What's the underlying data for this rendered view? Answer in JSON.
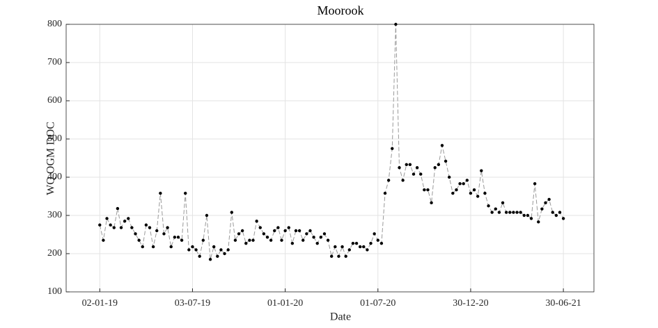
{
  "chart_data": {
    "type": "line",
    "title": "Moorook",
    "x_label": "Date",
    "y_label": "WQ OGM DOC",
    "x": [
      "2019-01-02",
      "2019-01-09",
      "2019-01-16",
      "2019-01-23",
      "2019-01-30",
      "2019-02-06",
      "2019-02-13",
      "2019-02-20",
      "2019-02-27",
      "2019-03-06",
      "2019-03-13",
      "2019-03-20",
      "2019-03-27",
      "2019-04-03",
      "2019-04-10",
      "2019-04-17",
      "2019-04-24",
      "2019-05-01",
      "2019-05-08",
      "2019-05-15",
      "2019-05-22",
      "2019-05-29",
      "2019-06-05",
      "2019-06-12",
      "2019-06-19",
      "2019-06-26",
      "2019-07-03",
      "2019-07-10",
      "2019-07-17",
      "2019-07-24",
      "2019-07-31",
      "2019-08-07",
      "2019-08-14",
      "2019-08-21",
      "2019-08-28",
      "2019-09-04",
      "2019-09-11",
      "2019-09-18",
      "2019-09-25",
      "2019-10-02",
      "2019-10-09",
      "2019-10-16",
      "2019-10-23",
      "2019-10-30",
      "2019-11-06",
      "2019-11-13",
      "2019-11-20",
      "2019-11-27",
      "2019-12-04",
      "2019-12-11",
      "2019-12-18",
      "2019-12-25",
      "2020-01-01",
      "2020-01-08",
      "2020-01-15",
      "2020-01-22",
      "2020-01-29",
      "2020-02-05",
      "2020-02-12",
      "2020-02-19",
      "2020-02-26",
      "2020-03-04",
      "2020-03-11",
      "2020-03-18",
      "2020-03-25",
      "2020-04-01",
      "2020-04-08",
      "2020-04-15",
      "2020-04-22",
      "2020-04-29",
      "2020-05-06",
      "2020-05-13",
      "2020-05-20",
      "2020-05-27",
      "2020-06-03",
      "2020-06-10",
      "2020-06-17",
      "2020-06-24",
      "2020-07-01",
      "2020-07-08",
      "2020-07-15",
      "2020-07-22",
      "2020-07-29",
      "2020-08-05",
      "2020-08-12",
      "2020-08-19",
      "2020-08-26",
      "2020-09-02",
      "2020-09-09",
      "2020-09-16",
      "2020-09-23",
      "2020-09-30",
      "2020-10-07",
      "2020-10-14",
      "2020-10-21",
      "2020-10-28",
      "2020-11-04",
      "2020-11-11",
      "2020-11-18",
      "2020-11-25",
      "2020-12-02",
      "2020-12-09",
      "2020-12-16",
      "2020-12-23",
      "2020-12-30",
      "2021-01-06",
      "2021-01-13",
      "2021-01-20",
      "2021-01-27",
      "2021-02-03",
      "2021-02-10",
      "2021-02-17",
      "2021-02-24",
      "2021-03-03",
      "2021-03-10",
      "2021-03-17",
      "2021-03-24",
      "2021-03-31",
      "2021-04-07",
      "2021-04-14",
      "2021-04-21",
      "2021-04-28",
      "2021-05-05",
      "2021-05-12",
      "2021-05-19",
      "2021-05-26",
      "2021-06-02",
      "2021-06-09",
      "2021-06-16",
      "2021-06-23",
      "2021-06-30"
    ],
    "series": [
      {
        "color": "#000000",
        "line_color": "#999999",
        "values": [
          275,
          235,
          292,
          275,
          268,
          318,
          268,
          285,
          292,
          268,
          252,
          235,
          218,
          275,
          268,
          218,
          260,
          358,
          252,
          268,
          218,
          243,
          243,
          235,
          358,
          210,
          218,
          210,
          193,
          235,
          300,
          185,
          218,
          193,
          210,
          200,
          210,
          308,
          235,
          252,
          260,
          227,
          235,
          235,
          285,
          268,
          252,
          243,
          235,
          260,
          268,
          235,
          260,
          268,
          227,
          260,
          260,
          235,
          252,
          260,
          243,
          227,
          243,
          252,
          235,
          193,
          218,
          193,
          218,
          193,
          210,
          227,
          227,
          218,
          218,
          210,
          227,
          252,
          235,
          227,
          358,
          392,
          475,
          800,
          425,
          392,
          433,
          433,
          408,
          425,
          408,
          367,
          367,
          333,
          425,
          433,
          483,
          442,
          400,
          358,
          367,
          383,
          383,
          392,
          358,
          367,
          350,
          417,
          358,
          325,
          308,
          317,
          308,
          333,
          308,
          308,
          308,
          308,
          308,
          300,
          300,
          292,
          383,
          283,
          317,
          333,
          342,
          308,
          300,
          308,
          292
        ]
      }
    ],
    "xlim": [
      "2018-10-28",
      "2021-08-29"
    ],
    "xticks": [
      {
        "value": "2019-01-02",
        "label": "02-01-19"
      },
      {
        "value": "2019-07-03",
        "label": "03-07-19"
      },
      {
        "value": "2020-01-01",
        "label": "01-01-20"
      },
      {
        "value": "2020-07-01",
        "label": "01-07-20"
      },
      {
        "value": "2020-12-30",
        "label": "30-12-20"
      },
      {
        "value": "2021-06-30",
        "label": "30-06-21"
      }
    ],
    "ylim": [
      100,
      800
    ],
    "yticks": [
      100,
      200,
      300,
      400,
      500,
      600,
      700,
      800
    ],
    "grid": true
  }
}
